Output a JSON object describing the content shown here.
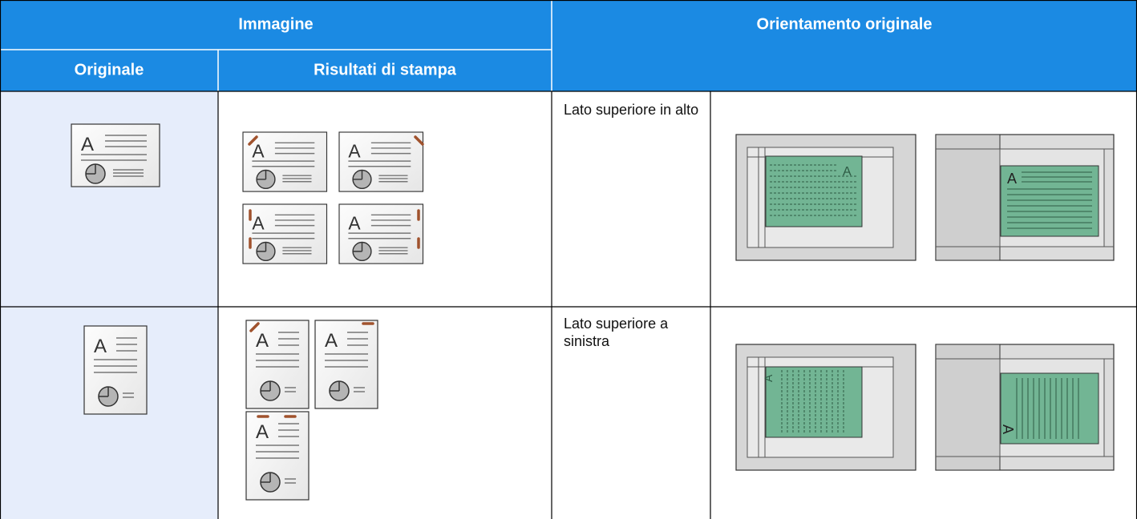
{
  "header": {
    "image": "Immagine",
    "orientation": "Orientamento originale",
    "original": "Originale",
    "results": "Risultati di stampa"
  },
  "rows": [
    {
      "orientation": "Lato superiore in alto"
    },
    {
      "orientation": "Lato superiore a sinistra"
    }
  ]
}
